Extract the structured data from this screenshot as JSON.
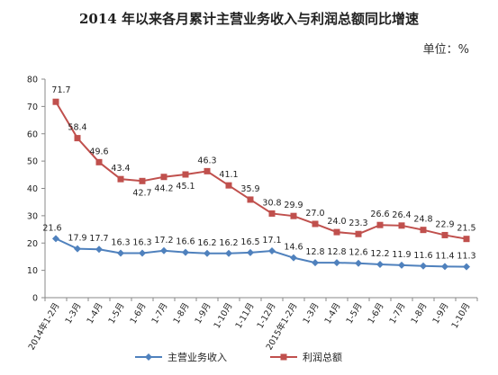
{
  "chart_data": {
    "type": "line",
    "title": "2014 年以来各月累计主营业务收入与利润总额同比增速",
    "unit": "单位：%",
    "categories": [
      "2014年1-2月",
      "1-3月",
      "1-4月",
      "1-5月",
      "1-6月",
      "1-7月",
      "1-8月",
      "1-9月",
      "1-10月",
      "1-11月",
      "1-12月",
      "2015年1-2月",
      "1-3月",
      "1-4月",
      "1-5月",
      "1-6月",
      "1-7月",
      "1-8月",
      "1-9月",
      "1-10月"
    ],
    "ylim": [
      0,
      80
    ],
    "yticks": [
      0,
      10,
      20,
      30,
      40,
      50,
      60,
      70,
      80
    ],
    "grid": false,
    "legend": "bottom",
    "series": [
      {
        "name": "主营业务收入",
        "color": "#4f81bd",
        "marker": "diamond",
        "values": [
          21.6,
          17.9,
          17.7,
          16.3,
          16.3,
          17.2,
          16.6,
          16.2,
          16.2,
          16.5,
          17.1,
          14.6,
          12.8,
          12.8,
          12.6,
          12.2,
          11.9,
          11.6,
          11.4,
          11.3
        ]
      },
      {
        "name": "利润总额",
        "color": "#c0504d",
        "marker": "square",
        "values": [
          71.7,
          58.4,
          49.6,
          43.4,
          42.7,
          44.2,
          45.1,
          46.3,
          41.1,
          35.9,
          30.8,
          29.9,
          27.0,
          24.0,
          23.3,
          26.6,
          26.4,
          24.8,
          22.9,
          21.5
        ]
      }
    ]
  }
}
